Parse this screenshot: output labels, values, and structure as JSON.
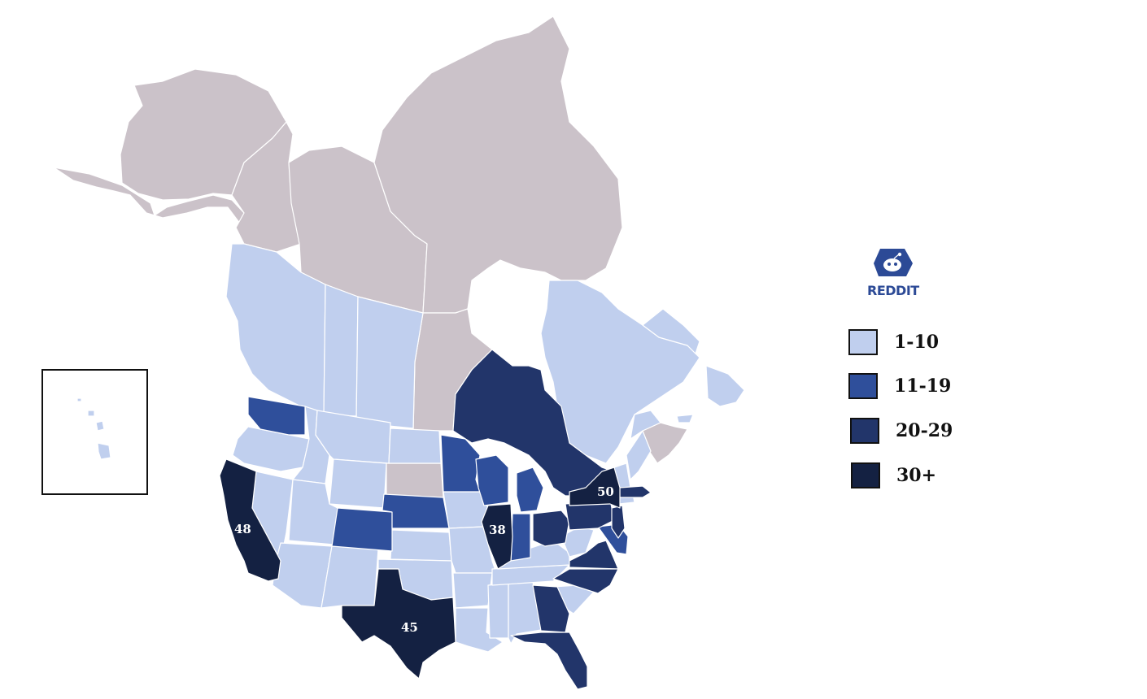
{
  "colors": {
    "bin_1_10": "#c0cfee",
    "bin_11_19": "#2f4f9b",
    "bin_20_29": "#22356a",
    "bin_30_plus": "#142142",
    "no_data": "#cbc2c9",
    "brand": "#2c4a96"
  },
  "logo": {
    "text": "REDDIT",
    "icon": "reddit-alien-icon"
  },
  "legend": [
    {
      "label": "1-10",
      "color": "#c0cfee"
    },
    {
      "label": "11-19",
      "color": "#2f4f9b"
    },
    {
      "label": "20-29",
      "color": "#22356a"
    },
    {
      "label": "30+",
      "color": "#142142"
    }
  ],
  "value_labels": {
    "california": "48",
    "texas": "45",
    "illinois": "38",
    "new_york": "50"
  },
  "regions": {
    "no_data": [
      "Alaska",
      "Yukon",
      "Northwest Territories",
      "Nunavut",
      "Manitoba",
      "South Dakota",
      "Nova Scotia"
    ],
    "bin_1_10": [
      "Hawaii",
      "British Columbia",
      "Alberta",
      "Saskatchewan",
      "Quebec",
      "New Brunswick",
      "Prince Edward Island",
      "Newfoundland and Labrador",
      "Oregon",
      "Idaho",
      "Montana",
      "Wyoming",
      "Nevada",
      "Utah",
      "Arizona",
      "New Mexico",
      "North Dakota",
      "Kansas",
      "Oklahoma",
      "Iowa",
      "Missouri",
      "Arkansas",
      "Louisiana",
      "Mississippi",
      "Alabama",
      "Tennessee",
      "Kentucky",
      "West Virginia",
      "South Carolina",
      "Vermont",
      "New Hampshire",
      "Maine",
      "Connecticut",
      "Rhode Island"
    ],
    "bin_11_19": [
      "Washington",
      "Colorado",
      "Nebraska",
      "Minnesota",
      "Wisconsin",
      "Michigan",
      "Indiana",
      "Maryland",
      "Delaware"
    ],
    "bin_20_29": [
      "Ontario",
      "Ohio",
      "Pennsylvania",
      "New Jersey",
      "Virginia",
      "North Carolina",
      "Georgia",
      "Florida",
      "Massachusetts"
    ],
    "bin_30_plus": [
      "California",
      "Texas",
      "Illinois",
      "New York"
    ]
  }
}
